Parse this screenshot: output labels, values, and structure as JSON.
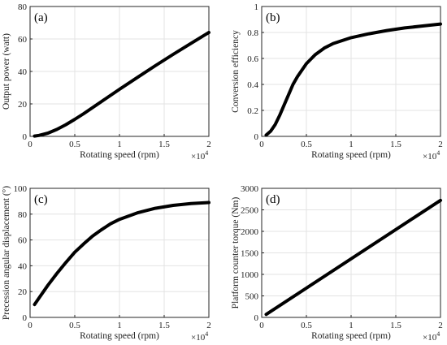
{
  "chart_data": [
    {
      "type": "line",
      "panel_label": "(a)",
      "xlabel": "Rotating speed (rpm)",
      "ylabel": "Output power (watt)",
      "x_multiplier": "×10",
      "x_multiplier_exp": "4",
      "xlim": [
        0,
        2
      ],
      "ylim": [
        0,
        80
      ],
      "xticks": [
        "0",
        "0.5",
        "1",
        "1.5",
        "2"
      ],
      "yticks": [
        "0",
        "20",
        "40",
        "60",
        "80"
      ],
      "grid": true,
      "series": [
        {
          "x": [
            0.05,
            0.1,
            0.2,
            0.3,
            0.4,
            0.5,
            0.6,
            0.8,
            1.0,
            1.2,
            1.4,
            1.6,
            1.8,
            2.0
          ],
          "y": [
            0.2,
            0.6,
            2.0,
            4.3,
            7.2,
            10.5,
            14.0,
            21.5,
            29.0,
            36.3,
            43.5,
            50.5,
            57.3,
            64.0
          ]
        }
      ]
    },
    {
      "type": "line",
      "panel_label": "(b)",
      "xlabel": "Rotating speed (rpm)",
      "ylabel": "Conversion efficiency",
      "x_multiplier": "×10",
      "x_multiplier_exp": "4",
      "xlim": [
        0,
        2
      ],
      "ylim": [
        0,
        1
      ],
      "xticks": [
        "0",
        "0.5",
        "1",
        "1.5",
        "2"
      ],
      "yticks": [
        "0",
        "0.2",
        "0.4",
        "0.6",
        "0.8",
        "1"
      ],
      "grid": true,
      "series": [
        {
          "x": [
            0.05,
            0.1,
            0.15,
            0.2,
            0.25,
            0.3,
            0.35,
            0.4,
            0.5,
            0.6,
            0.7,
            0.8,
            1.0,
            1.2,
            1.4,
            1.6,
            1.8,
            2.0
          ],
          "y": [
            0.01,
            0.04,
            0.09,
            0.16,
            0.24,
            0.32,
            0.4,
            0.46,
            0.56,
            0.63,
            0.68,
            0.715,
            0.76,
            0.79,
            0.815,
            0.835,
            0.85,
            0.865
          ]
        }
      ]
    },
    {
      "type": "line",
      "panel_label": "(c)",
      "xlabel": "Rotating speed (rpm)",
      "ylabel": "Precession angular displacement (°)",
      "x_multiplier": "×10",
      "x_multiplier_exp": "4",
      "xlim": [
        0,
        2
      ],
      "ylim": [
        0,
        100
      ],
      "xticks": [
        "0",
        "0.5",
        "1",
        "1.5",
        "2"
      ],
      "yticks": [
        "0",
        "20",
        "40",
        "60",
        "80",
        "100"
      ],
      "grid": true,
      "series": [
        {
          "x": [
            0.05,
            0.1,
            0.2,
            0.3,
            0.4,
            0.5,
            0.6,
            0.7,
            0.8,
            0.9,
            1.0,
            1.2,
            1.4,
            1.6,
            1.8,
            2.0
          ],
          "y": [
            10.0,
            15.0,
            25.0,
            34.0,
            42.5,
            50.5,
            57.0,
            63.0,
            68.0,
            72.5,
            76.0,
            81.0,
            84.5,
            86.8,
            88.2,
            89.0
          ]
        }
      ]
    },
    {
      "type": "line",
      "panel_label": "(d)",
      "xlabel": "Rotating speed (rpm)",
      "ylabel": "Platform counter torque (Nm)",
      "x_multiplier": "×10",
      "x_multiplier_exp": "4",
      "xlim": [
        0,
        2
      ],
      "ylim": [
        0,
        3000
      ],
      "xticks": [
        "0",
        "0.5",
        "1",
        "1.5",
        "2"
      ],
      "yticks": [
        "0",
        "500",
        "1000",
        "1500",
        "2000",
        "2500",
        "3000"
      ],
      "grid": true,
      "series": [
        {
          "x": [
            0.05,
            2.0
          ],
          "y": [
            70,
            2720
          ]
        }
      ]
    }
  ]
}
